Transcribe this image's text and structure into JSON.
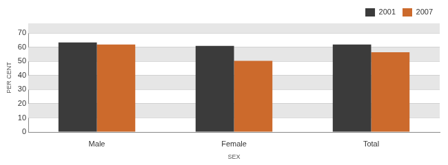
{
  "chart_data": {
    "type": "bar",
    "x_label": "SEX",
    "y_label": "PER CENT",
    "categories": [
      "Male",
      "Female",
      "Total"
    ],
    "series": [
      {
        "name": "2001",
        "color": "#3b3b3b",
        "values": [
          63.5,
          61,
          62
        ]
      },
      {
        "name": "2007",
        "color": "#cc6a2c",
        "values": [
          62,
          50.5,
          56.5
        ]
      }
    ],
    "ylim": [
      0,
      77
    ],
    "yticks": [
      0,
      10,
      20,
      30,
      40,
      50,
      60,
      70
    ],
    "grid": true,
    "legend": "upper right"
  }
}
